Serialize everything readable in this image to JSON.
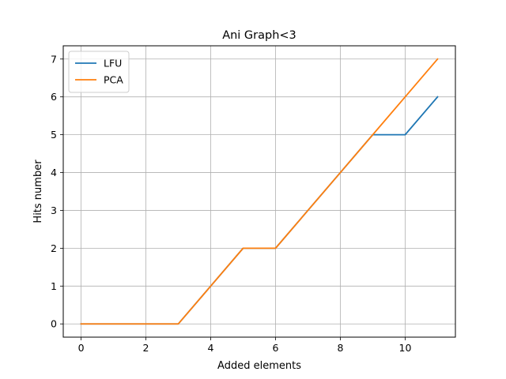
{
  "chart_data": {
    "type": "line",
    "title": "Ani Graph<3",
    "xlabel": "Added elements",
    "ylabel": "Hits number",
    "xlim": [
      -0.55,
      11.55
    ],
    "ylim": [
      -0.35,
      7.35
    ],
    "xticks": [
      0,
      2,
      4,
      6,
      8,
      10
    ],
    "yticks": [
      0,
      1,
      2,
      3,
      4,
      5,
      6,
      7
    ],
    "grid": true,
    "legend_position": "top-left",
    "x": [
      0,
      1,
      2,
      3,
      4,
      5,
      6,
      7,
      8,
      9,
      10,
      11
    ],
    "series": [
      {
        "name": "LFU",
        "color": "#1f77b4",
        "values": [
          0,
          0,
          0,
          0,
          1,
          2,
          2,
          3,
          4,
          5,
          5,
          6
        ]
      },
      {
        "name": "PCA",
        "color": "#ff7f0e",
        "values": [
          0,
          0,
          0,
          0,
          1,
          2,
          2,
          3,
          4,
          5,
          6,
          7
        ]
      }
    ]
  }
}
